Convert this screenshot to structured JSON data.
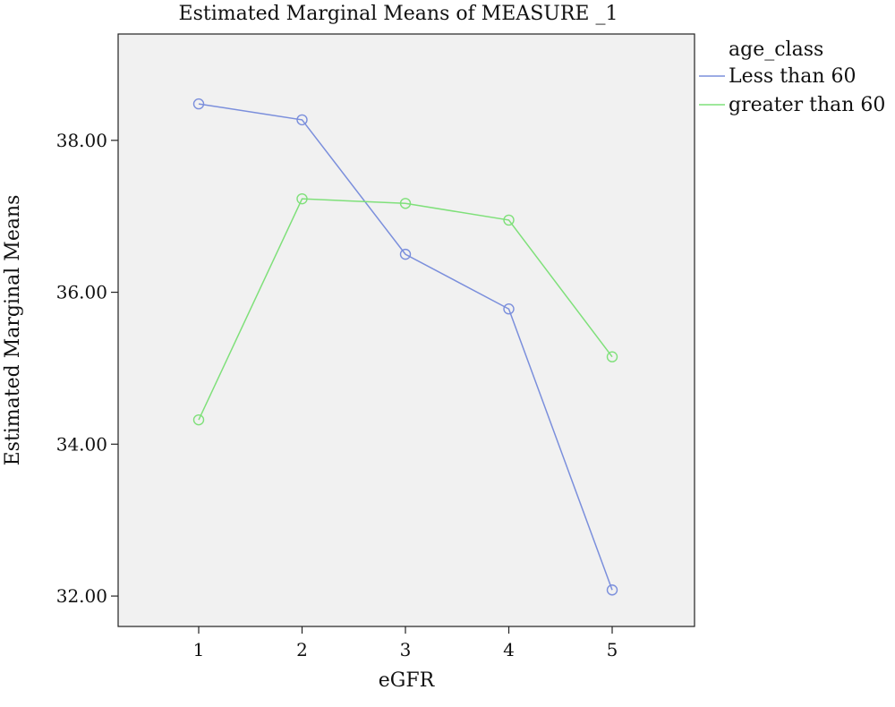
{
  "chart_data": {
    "type": "line",
    "title": "Estimated Marginal Means of MEASURE _1",
    "xlabel": "eGFR",
    "ylabel": "Estimated Marginal Means",
    "categories": [
      "1",
      "2",
      "3",
      "4",
      "5"
    ],
    "y_ticks": [
      "32.00",
      "34.00",
      "36.00",
      "38.00"
    ],
    "y_tick_values": [
      32,
      34,
      36,
      38
    ],
    "ylim": [
      31.6,
      39.4
    ],
    "grid": false,
    "legend_title": "age_class",
    "legend_position": "right",
    "series": [
      {
        "name": "Less than 60",
        "color": "#7b8fdc",
        "marker": "circle",
        "values": [
          38.48,
          38.27,
          36.5,
          35.78,
          32.08
        ]
      },
      {
        "name": "greater than 60",
        "color": "#7fe07a",
        "marker": "circle",
        "values": [
          34.32,
          37.23,
          37.17,
          36.95,
          35.15
        ]
      }
    ]
  }
}
